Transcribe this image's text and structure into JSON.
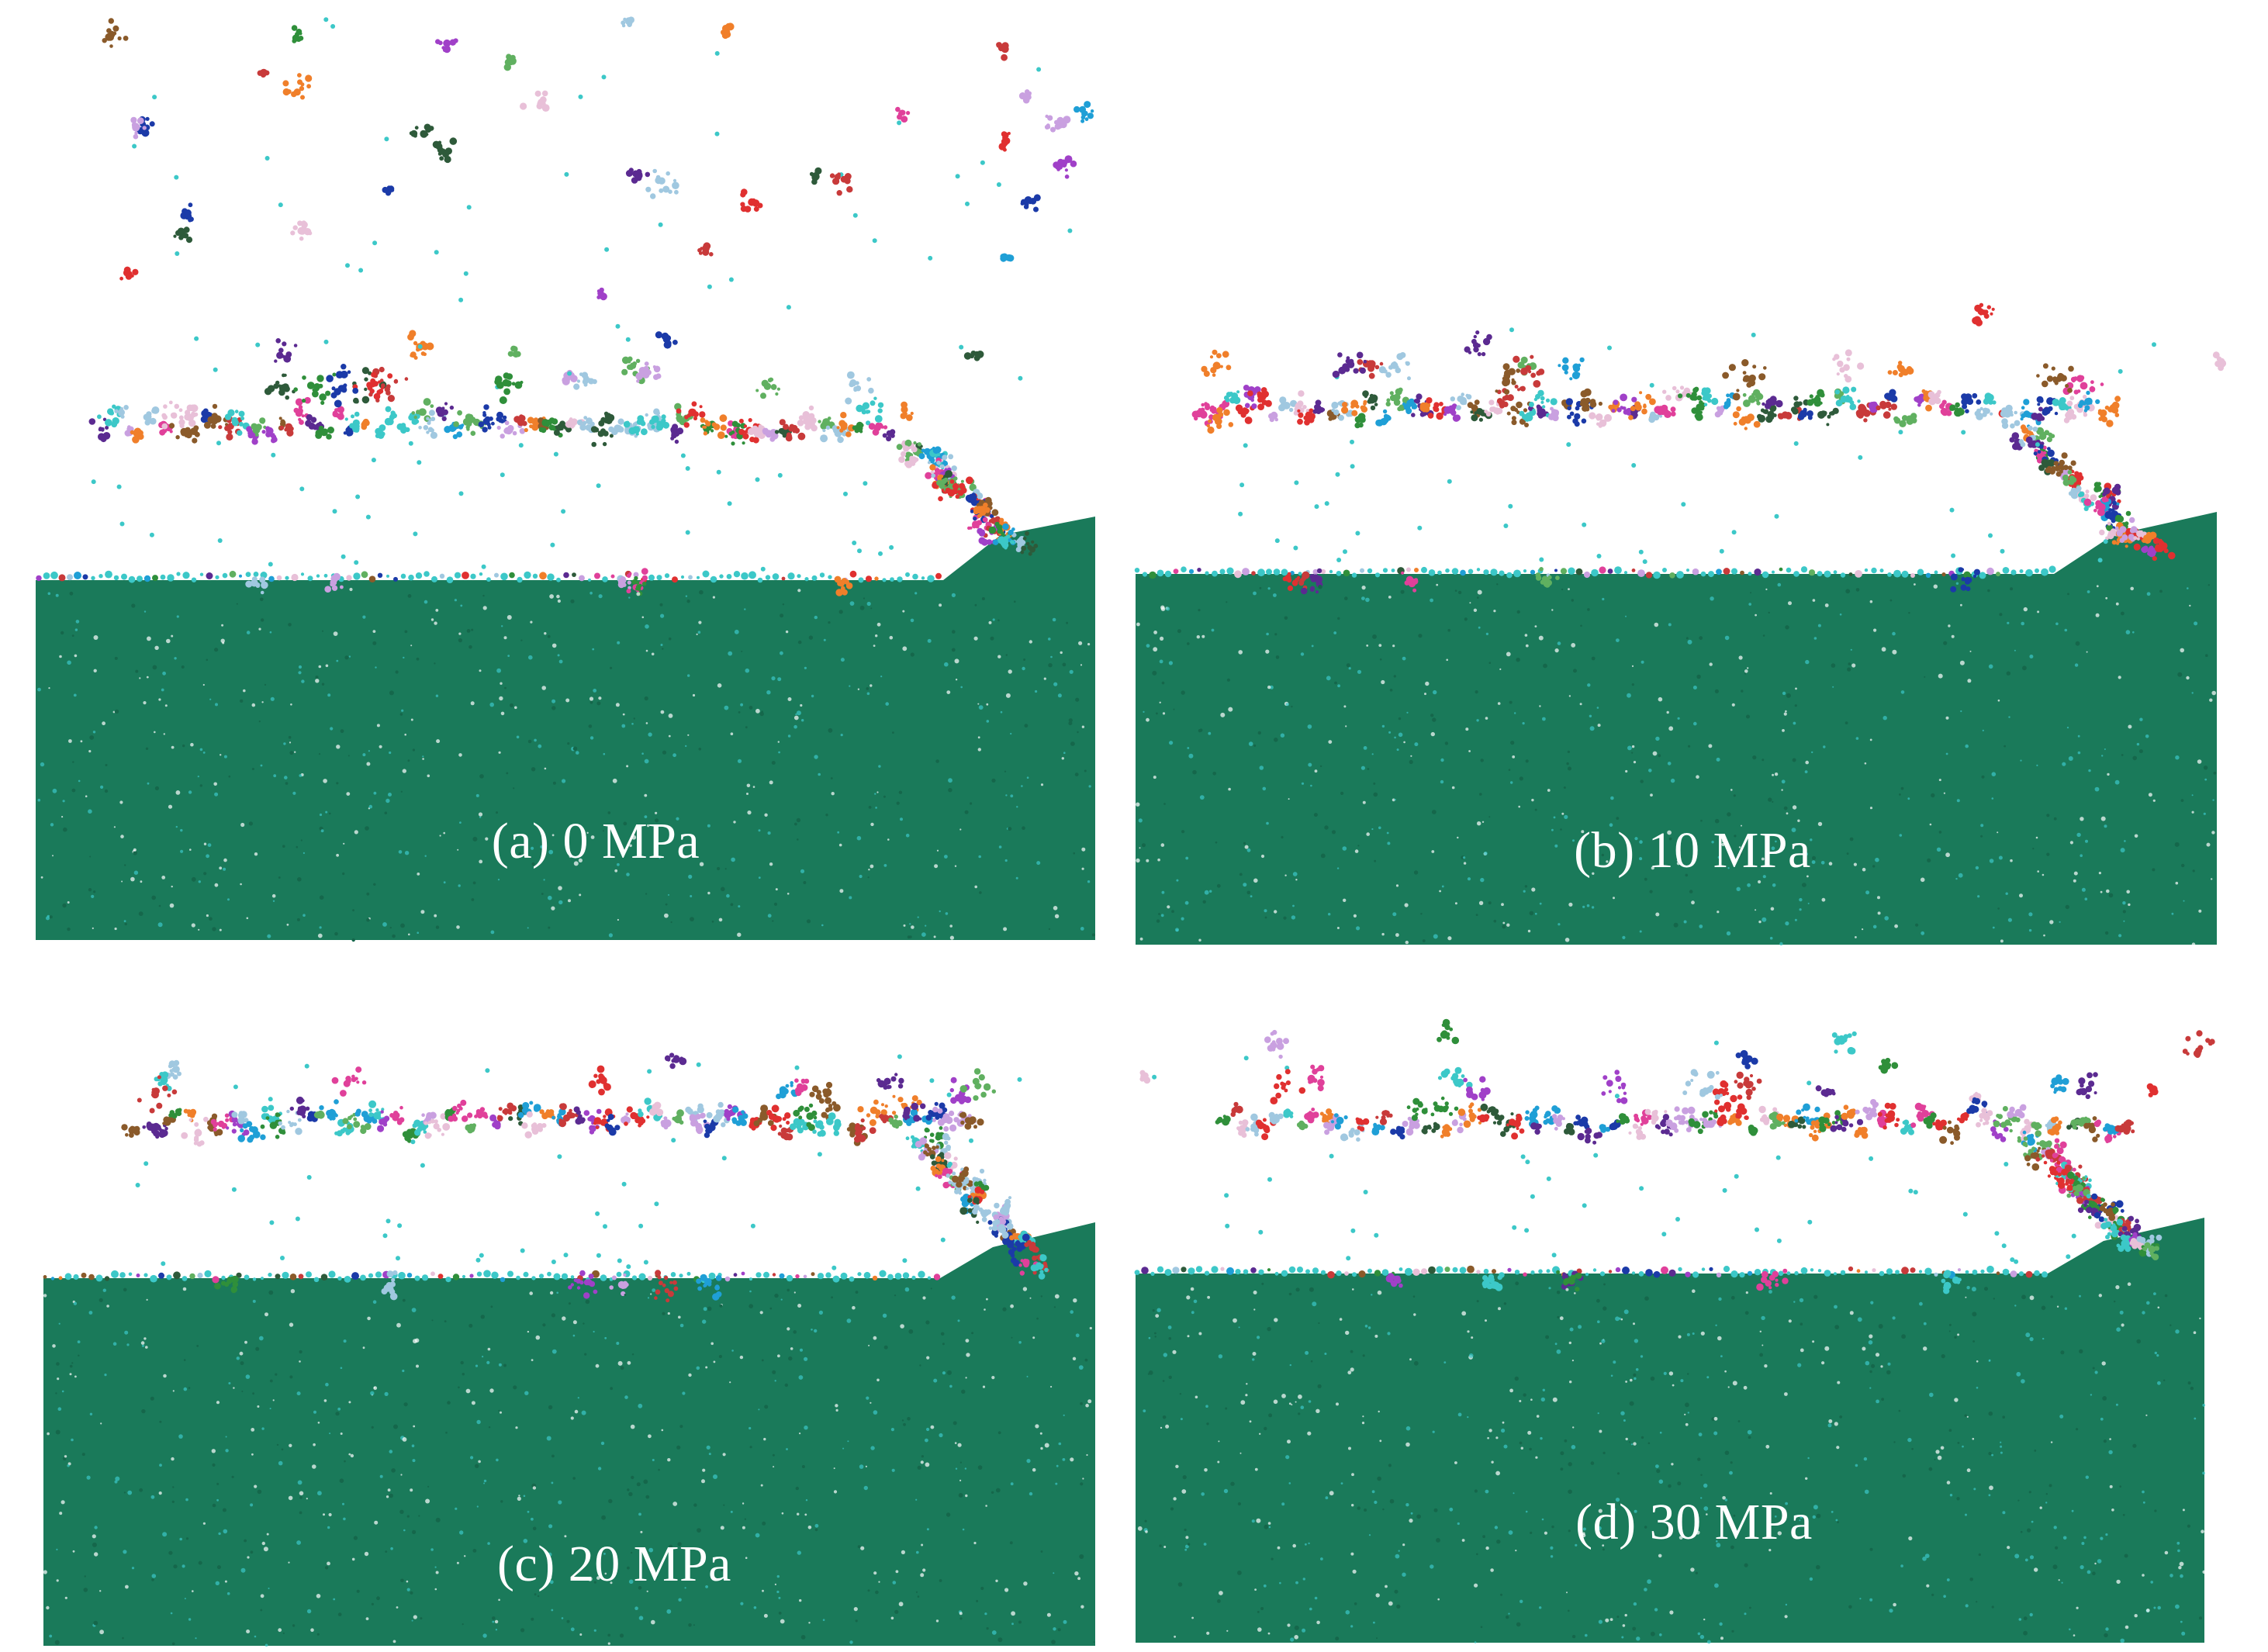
{
  "figure": {
    "panels": [
      {
        "id": "a",
        "caption": "(a) 0 MPa",
        "confining_pressure_mpa": 0
      },
      {
        "id": "b",
        "caption": "(b) 10 MPa",
        "confining_pressure_mpa": 10
      },
      {
        "id": "c",
        "caption": "(c) 20 MPa",
        "confining_pressure_mpa": 20
      },
      {
        "id": "d",
        "caption": "(d) 30 MPa",
        "confining_pressure_mpa": 30
      }
    ]
  },
  "colors": {
    "rock": "#1a7a5a",
    "rock_dark": "#15674b",
    "particle_speck": "#3cc8c8",
    "background": "#ffffff",
    "fragments": [
      "#5b2a91",
      "#e0409a",
      "#1f9fd6",
      "#f07f2a",
      "#3cc8c8",
      "#c83a3a",
      "#2f8f3a",
      "#8a5a2a",
      "#c9a0e0",
      "#1b3aa8",
      "#e8c0d8",
      "#2e5a3a",
      "#a040c8",
      "#e03030",
      "#60b060",
      "#a0c8e0"
    ]
  }
}
